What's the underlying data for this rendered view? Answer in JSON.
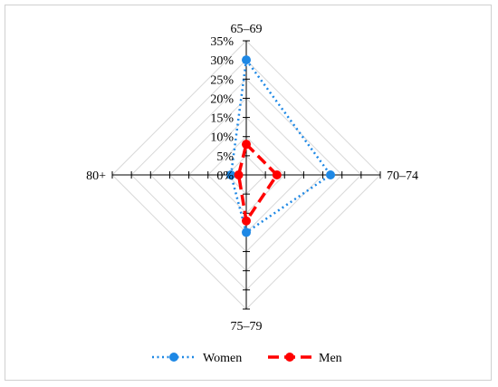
{
  "chart_data": {
    "type": "radar",
    "categories": [
      "65–69",
      "70–74",
      "75–79",
      "80+"
    ],
    "r_ticks": [
      "0%",
      "5%",
      "10%",
      "15%",
      "20%",
      "25%",
      "30%",
      "35%"
    ],
    "rlim": [
      0,
      35
    ],
    "series": [
      {
        "name": "Women",
        "values": [
          30,
          22,
          15,
          4
        ],
        "color": "#1e88e5",
        "line_style": "dotted",
        "marker": "circle"
      },
      {
        "name": "Men",
        "values": [
          8,
          8,
          12,
          2
        ],
        "color": "#ff0000",
        "line_style": "dashed",
        "marker": "circle"
      }
    ],
    "legend_position": "bottom",
    "grid": true
  }
}
